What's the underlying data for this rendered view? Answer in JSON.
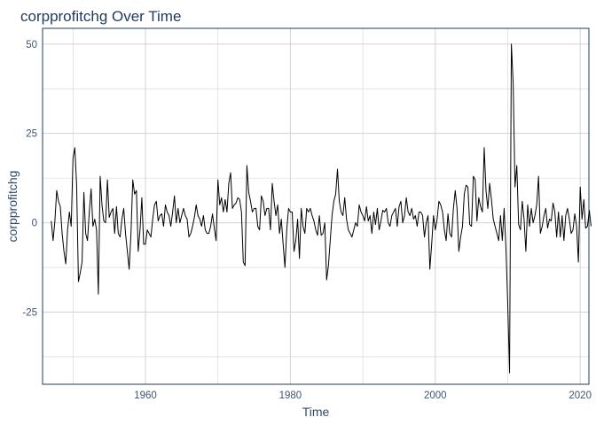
{
  "chart_data": {
    "type": "line",
    "title": "corpprofitchg Over Time",
    "xlabel": "Time",
    "ylabel": "corpprofitchg",
    "xlim": [
      1945.8,
      2021.2
    ],
    "ylim": [
      -45.2,
      54.4
    ],
    "x_ticks": [
      1960,
      1980,
      2000,
      2020
    ],
    "y_ticks": [
      50,
      25,
      0,
      -25
    ],
    "y_tick_labels": [
      "50",
      "25",
      "0",
      "-25"
    ],
    "x_tick_labels": [
      "1960",
      "1980",
      "2000",
      "2020"
    ],
    "grid": true,
    "legend": "none",
    "colors": {
      "line": "#000000",
      "grid": "#d3d3d3",
      "border": "#1f3a5a"
    },
    "series": [
      {
        "x_start": 1947.0,
        "x_step": 0.25,
        "values": [
          0.5,
          -5.0,
          0.5,
          9.0,
          6.0,
          4.5,
          -3.0,
          -8.0,
          -11.5,
          -2.0,
          3.0,
          -1.0,
          18.0,
          21.0,
          10.5,
          -16.5,
          -14.0,
          -11.0,
          8.5,
          -3.0,
          -5.0,
          3.0,
          9.5,
          -1.0,
          1.0,
          -2.0,
          -20.0,
          13.0,
          5.0,
          0.5,
          0.0,
          12.0,
          1.5,
          3.0,
          4.0,
          -3.0,
          4.5,
          -3.0,
          -4.0,
          1.0,
          4.0,
          -3.0,
          -8.0,
          -13.0,
          -3.0,
          12.0,
          8.0,
          9.0,
          -8.0,
          -2.0,
          7.0,
          -6.0,
          -6.0,
          -2.0,
          -3.0,
          -4.0,
          1.0,
          5.0,
          6.0,
          0.5,
          2.0,
          2.5,
          -1.0,
          5.0,
          3.0,
          2.0,
          -1.0,
          3.0,
          7.5,
          0.0,
          4.0,
          0.0,
          2.0,
          4.0,
          2.0,
          1.0,
          -4.0,
          -3.0,
          -1.0,
          1.5,
          5.0,
          2.0,
          1.0,
          -1.0,
          2.0,
          -2.0,
          -3.0,
          -3.0,
          -1.0,
          2.5,
          -1.5,
          -5.0,
          12.0,
          5.0,
          7.0,
          3.0,
          6.5,
          3.0,
          11.0,
          14.0,
          4.0,
          5.0,
          5.5,
          7.0,
          6.5,
          3.0,
          -11.0,
          -12.0,
          16.0,
          8.5,
          6.0,
          3.0,
          4.0,
          4.0,
          -1.0,
          -2.0,
          7.5,
          6.0,
          2.0,
          4.0,
          4.0,
          -2.0,
          11.0,
          6.0,
          2.0,
          5.0,
          -3.0,
          1.0,
          -6.0,
          -12.5,
          -2.0,
          4.0,
          3.0,
          3.0,
          -8.0,
          -5.0,
          1.0,
          -10.0,
          4.0,
          -1.0,
          -3.0,
          4.0,
          3.0,
          4.0,
          2.0,
          0.5,
          -2.0,
          -3.5,
          2.0,
          -3.5,
          -3.0,
          0.0,
          -16.0,
          -12.0,
          -5.0,
          2.0,
          6.0,
          8.0,
          15.0,
          6.0,
          3.0,
          2.0,
          7.0,
          1.0,
          -2.0,
          -3.0,
          -4.0,
          -2.0,
          0.0,
          -1.0,
          5.0,
          3.0,
          2.0,
          0.5,
          4.5,
          0.5,
          2.0,
          -3.0,
          3.0,
          -0.5,
          4.0,
          -2.0,
          0.5,
          3.5,
          3.0,
          4.0,
          0.0,
          -1.0,
          2.0,
          3.0,
          4.0,
          -1.0,
          4.5,
          6.0,
          0.0,
          2.0,
          7.0,
          3.0,
          2.0,
          4.0,
          1.0,
          2.0,
          -1.0,
          3.0,
          3.0,
          2.0,
          -4.0,
          0.0,
          2.0,
          -13.0,
          -6.0,
          2.0,
          -2.0,
          1.0,
          6.0,
          5.0,
          3.0,
          -2.0,
          -5.0,
          2.5,
          -3.0,
          -4.0,
          4.0,
          9.0,
          4.0,
          -8.0,
          -4.0,
          -1.0,
          8.0,
          10.5,
          10.0,
          -0.5,
          -1.0,
          13.0,
          12.0,
          0.5,
          7.0,
          4.5,
          3.0,
          21.0,
          9.0,
          4.0,
          11.0,
          6.5,
          1.0,
          -1.0,
          -3.0,
          -5.0,
          2.0,
          -5.0,
          4.0,
          -7.0,
          -23.0,
          -42.0,
          50.0,
          39.0,
          10.0,
          16.0,
          -0.5,
          -2.0,
          6.0,
          1.0,
          -8.0,
          5.0,
          -1.0,
          4.0,
          0.0,
          2.0,
          5.0,
          13.0,
          -3.0,
          -1.0,
          2.0,
          4.0,
          -1.5,
          1.0,
          0.5,
          5.5,
          3.0,
          -4.0,
          3.0,
          -4.0,
          2.0,
          -5.0,
          2.0,
          4.0,
          1.0,
          -3.0,
          -2.0,
          2.5,
          -1.0,
          -11.0,
          10.0,
          1.0,
          6.5,
          -1.5,
          -1.0,
          3.5,
          -1.0
        ]
      }
    ]
  }
}
